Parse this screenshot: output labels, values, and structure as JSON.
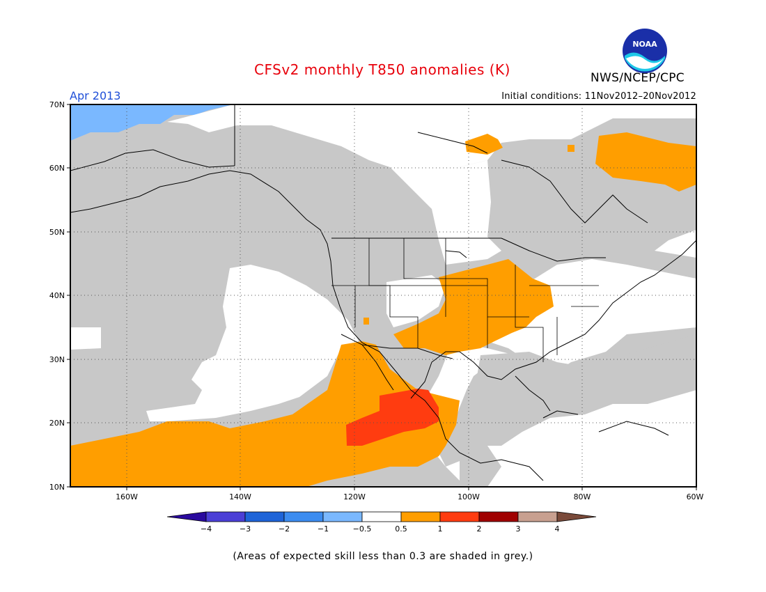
{
  "header": {
    "title": "CFSv2 monthly T850 anomalies (K)",
    "agency": "NWS/NCEP/CPC",
    "logo_text": "NOAA",
    "valid_month": "Apr 2013",
    "initial_conditions": "Initial conditions: 11Nov2012–20Nov2012"
  },
  "map": {
    "lat_labels": [
      "70N",
      "60N",
      "50N",
      "40N",
      "30N",
      "20N",
      "10N"
    ],
    "lon_labels": [
      "160W",
      "140W",
      "120W",
      "100W",
      "80W",
      "60W"
    ],
    "skill_mask_color": "#c8c8c8"
  },
  "legend": {
    "tick_labels": [
      "−4",
      "−3",
      "−2",
      "−1",
      "−0.5",
      "0.5",
      "1",
      "2",
      "3",
      "4"
    ],
    "colors": [
      "#2a0a9e",
      "#4b3fd6",
      "#1e64d8",
      "#3c8cf0",
      "#7ab8ff",
      "#ffffff",
      "#ff9e00",
      "#ff3c10",
      "#a00000",
      "#c8a090",
      "#7a4a3a"
    ]
  },
  "footer": {
    "note": "(Areas of expected skill less than 0.3 are shaded in grey.)"
  }
}
